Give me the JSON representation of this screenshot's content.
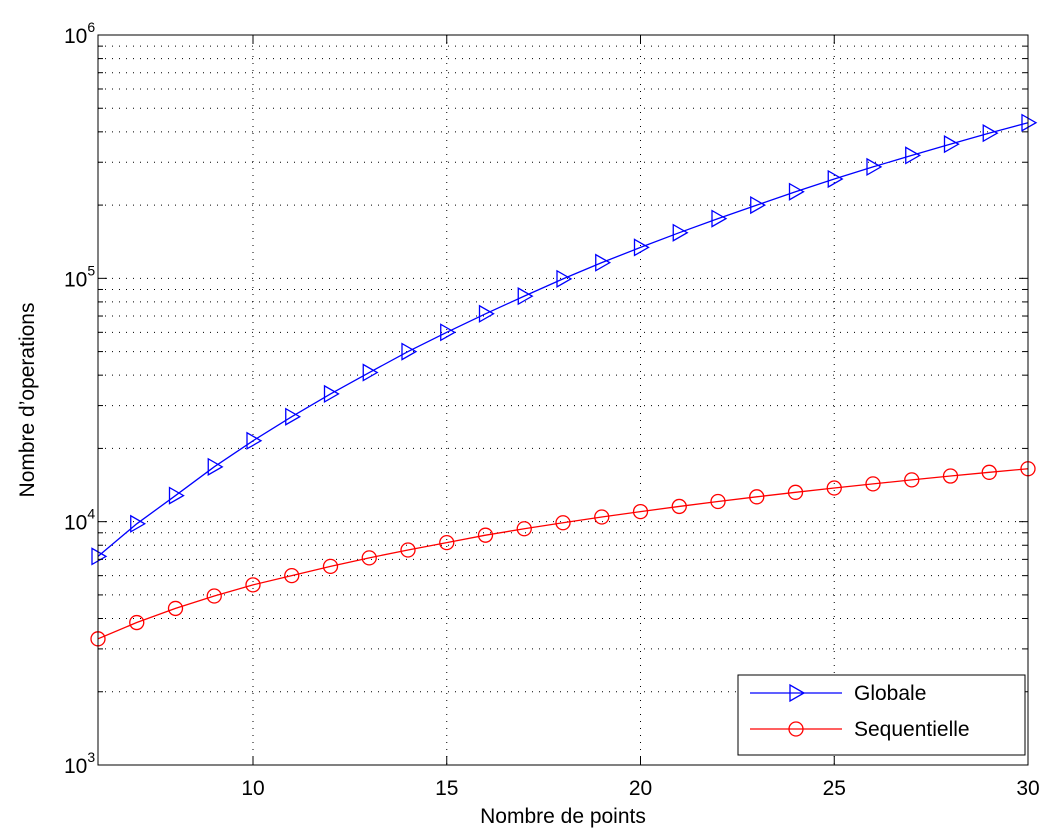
{
  "chart_data": {
    "type": "line",
    "title": "",
    "xlabel": "Nombre de points",
    "ylabel": "Nombre d’operations",
    "x_range": [
      6,
      30
    ],
    "y_range": [
      1000,
      1000000
    ],
    "y_scale": "log",
    "grid": "dotted, major and minor",
    "legend_position": "bottom-right",
    "x_ticks": [
      10,
      15,
      20,
      25,
      30
    ],
    "y_ticks": [
      {
        "value": 1000,
        "base": "10",
        "exponent": "3"
      },
      {
        "value": 10000,
        "base": "10",
        "exponent": "4"
      },
      {
        "value": 100000,
        "base": "10",
        "exponent": "5"
      },
      {
        "value": 1000000,
        "base": "10",
        "exponent": "6"
      }
    ],
    "x": [
      6,
      7,
      8,
      9,
      10,
      11,
      12,
      13,
      14,
      15,
      16,
      17,
      18,
      19,
      20,
      21,
      22,
      23,
      24,
      25,
      26,
      27,
      28,
      29,
      30
    ],
    "series": [
      {
        "name": "Globale",
        "color": "#0000ff",
        "marker": "triangle-right",
        "values": [
          7200,
          9800,
          12800,
          16800,
          21500,
          27000,
          33500,
          41000,
          50000,
          60000,
          71500,
          84500,
          99500,
          116000,
          134000,
          154000,
          176000,
          200000,
          227000,
          256000,
          287000,
          320000,
          356000,
          395000,
          436000
        ]
      },
      {
        "name": "Sequentielle",
        "color": "#ff0000",
        "marker": "circle",
        "values": [
          3300,
          3850,
          4400,
          4950,
          5500,
          6000,
          6550,
          7100,
          7650,
          8200,
          8800,
          9350,
          9900,
          10450,
          11000,
          11550,
          12100,
          12650,
          13200,
          13750,
          14300,
          14850,
          15400,
          15950,
          16500
        ]
      }
    ]
  }
}
